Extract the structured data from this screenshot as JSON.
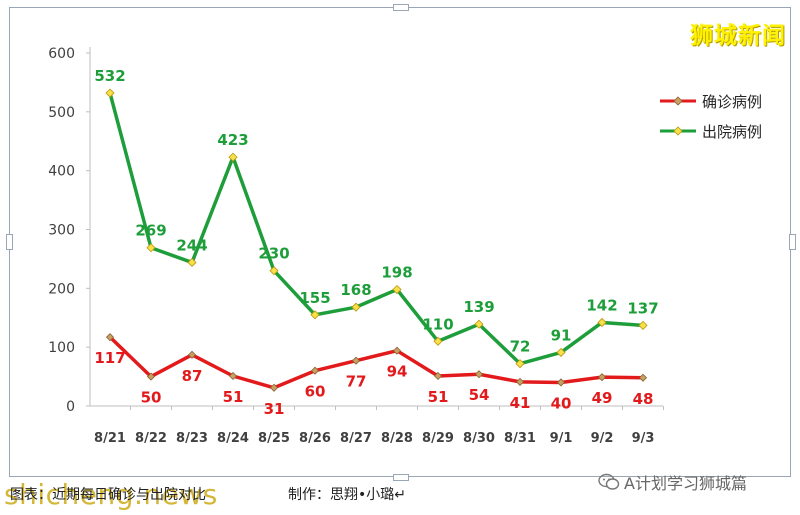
{
  "brand": "狮城新闻",
  "caption": "图表：近期每日确诊与出院对比",
  "credit": "制作：思翔•小璐↵",
  "watermark": "shicheng.news",
  "wechat_account": "A计划学习狮城篇",
  "icons": {
    "wechat": "wechat-icon"
  },
  "colors": {
    "confirmed": "#e31a1c",
    "discharged": "#1e9e3a",
    "marker": "#f7e04a",
    "brand": "#fff200"
  },
  "chart_data": {
    "type": "line",
    "categories": [
      "8/21",
      "8/22",
      "8/23",
      "8/24",
      "8/25",
      "8/26",
      "8/27",
      "8/28",
      "8/29",
      "8/30",
      "8/31",
      "9/1",
      "9/2",
      "9/3"
    ],
    "series": [
      {
        "name": "确诊病例",
        "values": [
          117,
          50,
          87,
          51,
          31,
          60,
          77,
          94,
          51,
          54,
          41,
          40,
          49,
          48
        ]
      },
      {
        "name": "出院病例",
        "values": [
          532,
          269,
          244,
          423,
          230,
          155,
          168,
          198,
          110,
          139,
          72,
          91,
          142,
          137
        ]
      }
    ],
    "ylim": [
      0,
      600
    ],
    "yticks": [
      0,
      100,
      200,
      300,
      400,
      500,
      600
    ],
    "grid": false,
    "legend": "right"
  }
}
